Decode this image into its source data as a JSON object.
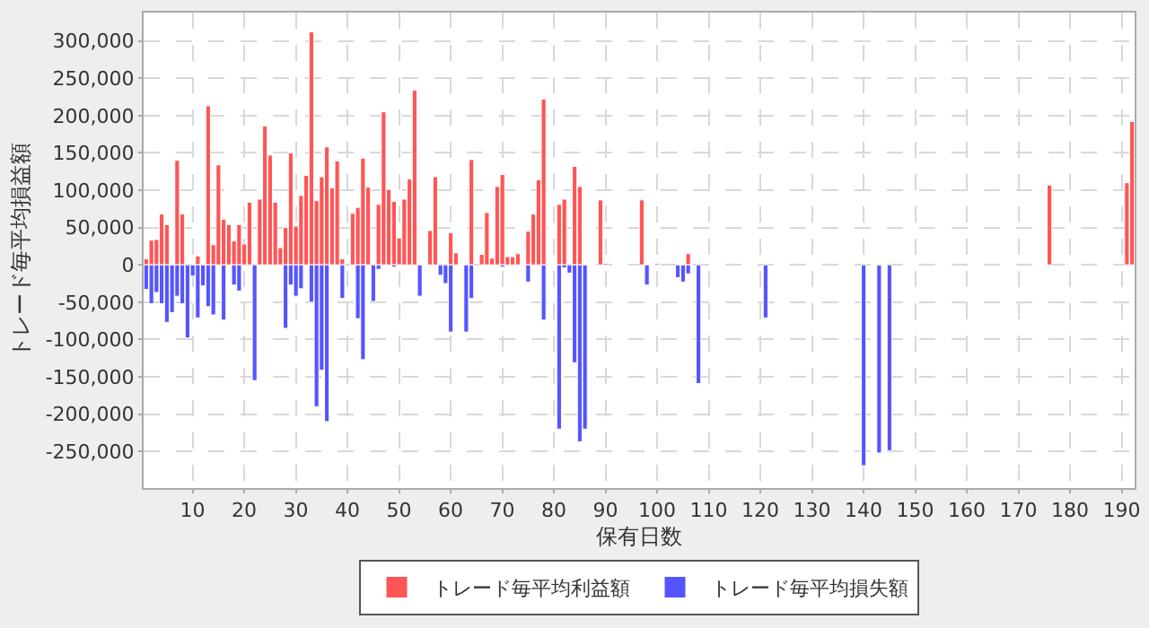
{
  "chart_data": {
    "type": "bar",
    "xlabel": "保有日数",
    "ylabel": "トレード毎平均損益額",
    "xlim": [
      0.5,
      192.5
    ],
    "xticks": [
      10,
      20,
      30,
      40,
      50,
      60,
      70,
      80,
      90,
      100,
      110,
      120,
      130,
      140,
      150,
      160,
      170,
      180,
      190
    ],
    "ylim": [
      -299000,
      338000
    ],
    "yticks": [
      {
        "value": -250000,
        "label": "-250,000"
      },
      {
        "value": -200000,
        "label": "-200,000"
      },
      {
        "value": -150000,
        "label": "-150,000"
      },
      {
        "value": -100000,
        "label": "-100,000"
      },
      {
        "value": -50000,
        "label": "-50,000"
      },
      {
        "value": 0,
        "label": "0"
      },
      {
        "value": 50000,
        "label": "50,000"
      },
      {
        "value": 100000,
        "label": "100,000"
      },
      {
        "value": 150000,
        "label": "150,000"
      },
      {
        "value": 200000,
        "label": "200,000"
      },
      {
        "value": 250000,
        "label": "250,000"
      },
      {
        "value": 300000,
        "label": "300,000"
      }
    ],
    "grid": true,
    "legend": "bottom",
    "series": [
      {
        "name": "トレード毎平均利益額",
        "color": "#ff5555",
        "x": [
          1,
          2,
          3,
          4,
          5,
          7,
          8,
          11,
          13,
          14,
          15,
          16,
          17,
          18,
          19,
          20,
          21,
          23,
          24,
          25,
          26,
          27,
          28,
          29,
          30,
          31,
          32,
          33,
          34,
          35,
          36,
          37,
          38,
          39,
          41,
          42,
          43,
          44,
          46,
          47,
          48,
          49,
          50,
          51,
          52,
          53,
          56,
          57,
          60,
          61,
          64,
          66,
          67,
          68,
          69,
          70,
          71,
          72,
          73,
          75,
          76,
          77,
          78,
          81,
          82,
          84,
          85,
          89,
          90,
          97,
          100,
          106,
          176,
          191,
          192
        ],
        "values": [
          8000,
          33000,
          34000,
          68000,
          54000,
          140000,
          68000,
          12000,
          213000,
          27000,
          134000,
          61000,
          54000,
          32000,
          54000,
          28000,
          84000,
          88000,
          186000,
          147000,
          84000,
          23000,
          50000,
          150000,
          52000,
          93000,
          120000,
          312000,
          86000,
          118000,
          158000,
          103000,
          139000,
          8000,
          69000,
          77000,
          143000,
          104000,
          81000,
          205000,
          101000,
          85000,
          36000,
          88000,
          115000,
          234000,
          46000,
          118000,
          43000,
          16000,
          141000,
          14000,
          70000,
          9000,
          105000,
          121000,
          11000,
          11000,
          15000,
          45000,
          68000,
          114000,
          222000,
          81000,
          88000,
          132000,
          105000,
          87000,
          2000,
          87000,
          2000,
          15000,
          107000,
          110000,
          192000
        ]
      },
      {
        "name": "トレード毎平均損失額",
        "color": "#5555ff",
        "x": [
          1,
          2,
          3,
          4,
          5,
          6,
          7,
          8,
          9,
          10,
          11,
          12,
          13,
          14,
          16,
          18,
          19,
          22,
          28,
          29,
          30,
          31,
          33,
          34,
          35,
          36,
          39,
          42,
          43,
          45,
          46,
          49,
          54,
          58,
          59,
          60,
          63,
          64,
          70,
          75,
          78,
          81,
          82,
          83,
          84,
          85,
          86,
          98,
          104,
          105,
          106,
          108,
          121,
          140,
          143,
          145
        ],
        "values": [
          -33000,
          -52000,
          -37000,
          -52000,
          -77000,
          -64000,
          -42000,
          -52000,
          -98000,
          -15000,
          -71000,
          -28000,
          -56000,
          -67000,
          -74000,
          -27000,
          -35000,
          -155000,
          -85000,
          -27000,
          -42000,
          -32000,
          -50000,
          -190000,
          -141000,
          -210000,
          -45000,
          -72000,
          -127000,
          -49000,
          -6000,
          -3000,
          -42000,
          -14000,
          -25000,
          -90000,
          -90000,
          -45000,
          -3000,
          -23000,
          -74000,
          -220000,
          -4000,
          -11000,
          -131000,
          -237000,
          -220000,
          -27000,
          -17000,
          -23000,
          -12000,
          -159000,
          -71000,
          -269000,
          -252000,
          -249000
        ]
      }
    ]
  }
}
